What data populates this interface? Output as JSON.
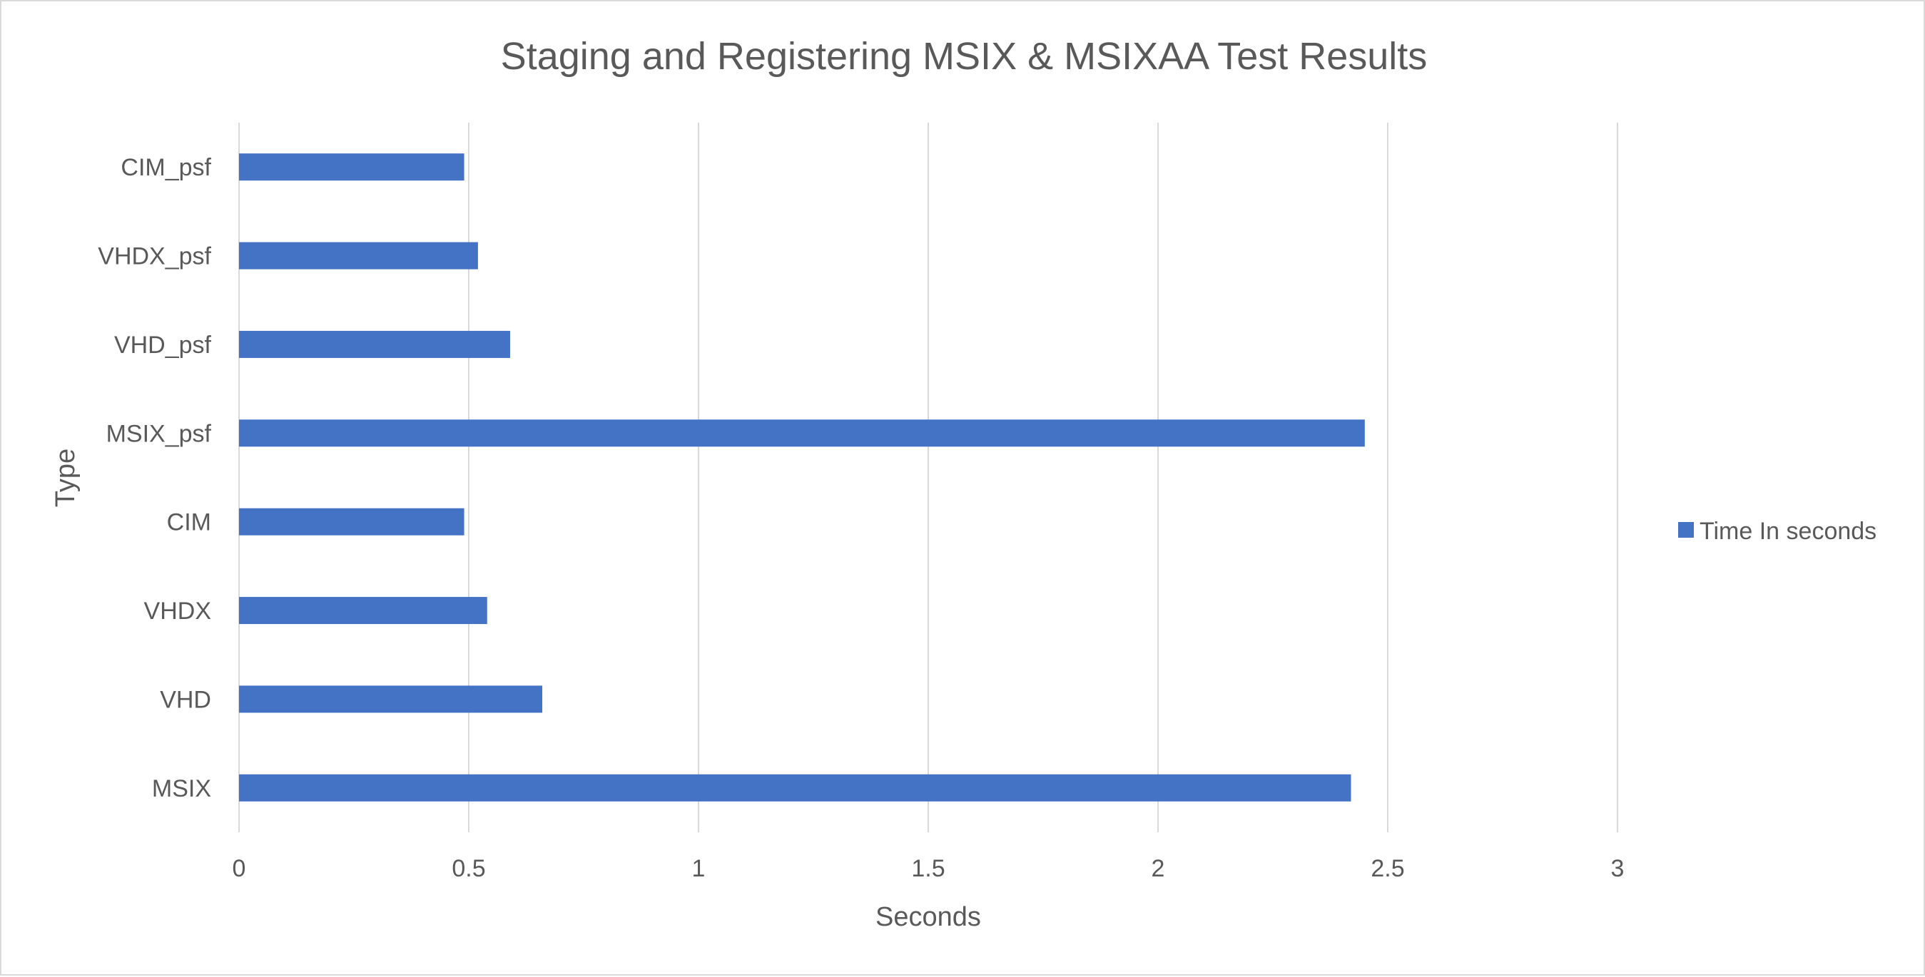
{
  "chart_data": {
    "type": "bar",
    "orientation": "horizontal",
    "title": "Staging and Registering MSIX & MSIXAA Test Results",
    "xlabel": "Seconds",
    "ylabel": "Type",
    "xlim": [
      0,
      3
    ],
    "x_ticks": [
      "0",
      "0.5",
      "1",
      "1.5",
      "2",
      "2.5",
      "3"
    ],
    "categories": [
      "MSIX",
      "VHD",
      "VHDX",
      "CIM",
      "MSIX_psf",
      "VHD_psf",
      "VHDX_psf",
      "CIM_psf"
    ],
    "series": [
      {
        "name": "Time In seconds",
        "color": "#4472c4",
        "values": [
          2.42,
          0.66,
          0.54,
          0.49,
          2.45,
          0.59,
          0.52,
          0.49
        ]
      }
    ],
    "grid": "vertical",
    "legend_position": "right"
  }
}
